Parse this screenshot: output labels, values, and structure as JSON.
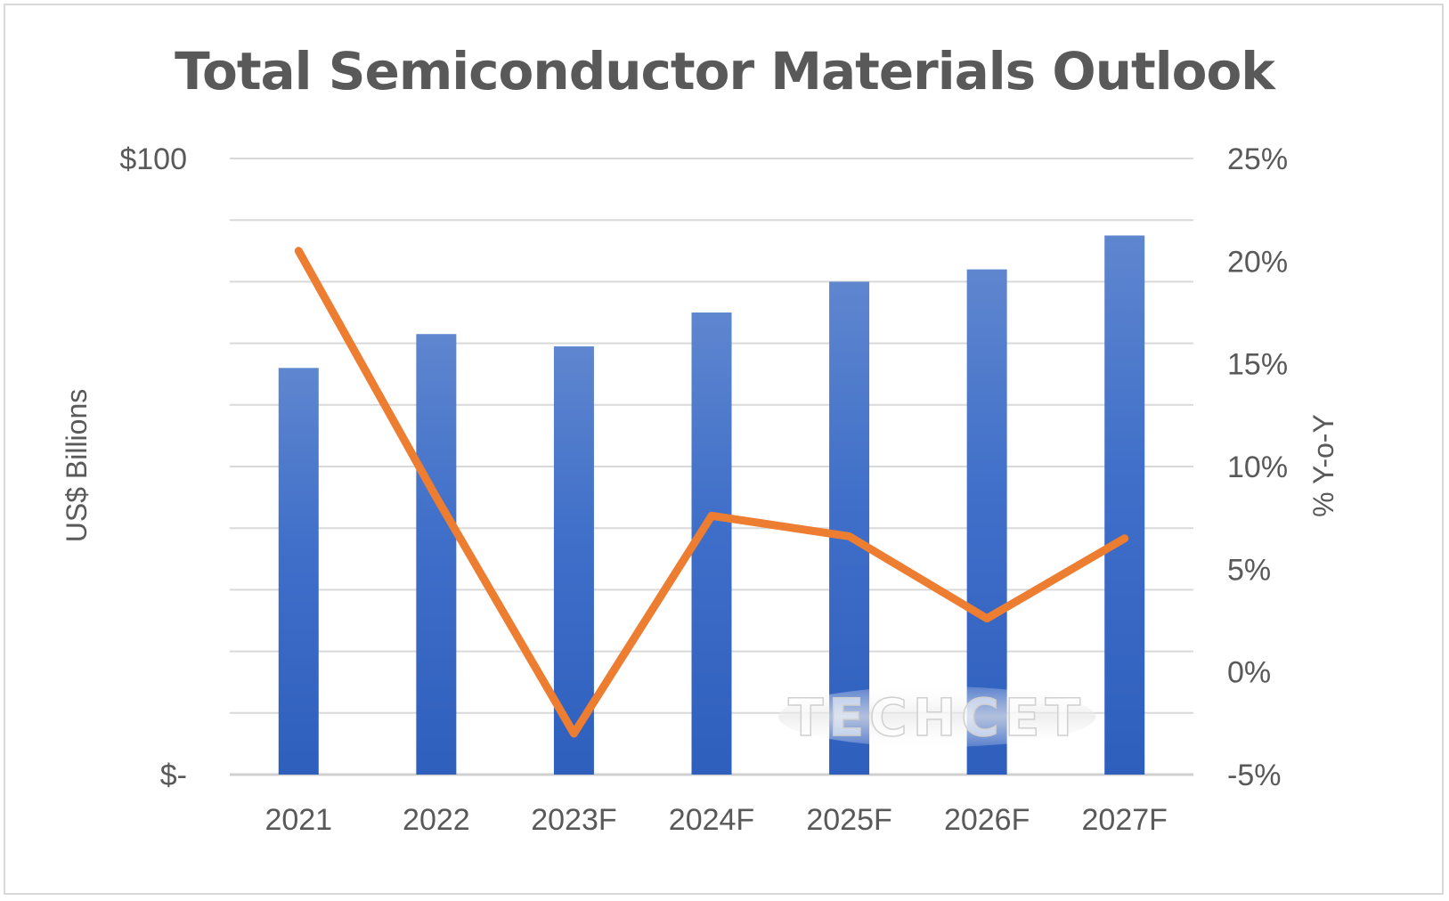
{
  "chart_data": {
    "type": "bar",
    "title": "Total Semiconductor Materials Outlook",
    "categories": [
      "2021",
      "2022",
      "2023F",
      "2024F",
      "2025F",
      "2026F",
      "2027F"
    ],
    "series": [
      {
        "type": "bar",
        "axis": "left",
        "color": "#3a6cc8",
        "values": [
          66,
          71.5,
          69.5,
          75,
          80,
          82,
          87.5
        ]
      },
      {
        "type": "line",
        "axis": "right",
        "color": "#ed7d31",
        "values": [
          20.5,
          8.5,
          -3,
          7.6,
          6.6,
          2.6,
          6.5
        ]
      }
    ],
    "y_left": {
      "label": "US$ Billions",
      "min": 0,
      "max": 100,
      "tick_labels": [
        "$-",
        "$100"
      ],
      "gridlines": 11
    },
    "y_right": {
      "label": "% Y-o-Y",
      "min": -5,
      "max": 25,
      "ticks": [
        -5,
        0,
        5,
        10,
        15,
        20,
        25
      ],
      "tick_labels": [
        "-5%",
        "0%",
        "5%",
        "10%",
        "15%",
        "20%",
        "25%"
      ]
    },
    "grid": true,
    "legend": "none",
    "watermark": "TECHCET"
  }
}
